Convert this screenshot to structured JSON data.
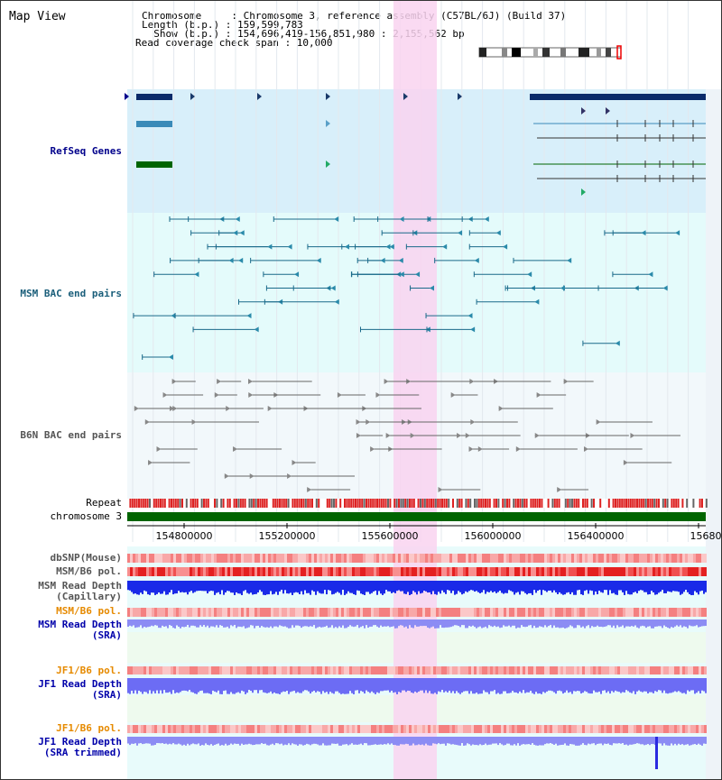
{
  "header": {
    "title": "Map View",
    "chromosome_line": "Chromosome     : Chromosome 3, reference assembly (C57BL/6J) (Build 37)",
    "length_line": "Length (b.p.) : 159,599,783",
    "show_line": "  Show (b.p.) : 154,696,419-156,851,980 : 2,155,562 bp",
    "coverage_line": "Read coverage check span : 10,000"
  },
  "tracks": {
    "refseq": "RefSeq Genes",
    "msm_bac": "MSM BAC end pairs",
    "b6n_bac": "B6N BAC end pairs",
    "repeat": "Repeat",
    "chromosome": "chromosome 3",
    "dbsnp": "dbSNP(Mouse)",
    "msm_b6_pol": "MSM/B6 pol.",
    "msm_read_depth_cap": "MSM Read Depth\n(Capillary)",
    "msm_b6_pol_sra": "MSM/B6 pol.",
    "msm_read_depth_sra": "MSM Read Depth\n(SRA)",
    "jf1_b6_pol_1": "JF1/B6 pol.",
    "jf1_read_depth_sra": "JF1 Read Depth\n(SRA)",
    "jf1_b6_pol_2": "JF1/B6 pol.",
    "jf1_read_depth_trim": "JF1 Read Depth\n(SRA trimmed)"
  },
  "axis": {
    "ticks": [
      "154800000",
      "155200000",
      "155600000",
      "156000000",
      "156400000",
      "15680"
    ]
  },
  "colors": {
    "refseq_label": "#00008b",
    "msm_label": "#1a5e7a",
    "b6n_label": "#555555",
    "orange_label": "#e68a00",
    "blue_label": "#0000aa",
    "highlight": "#f9d4f0",
    "refseq_bg": "#d8effa",
    "bac_bg": "#e4fbfb"
  }
}
